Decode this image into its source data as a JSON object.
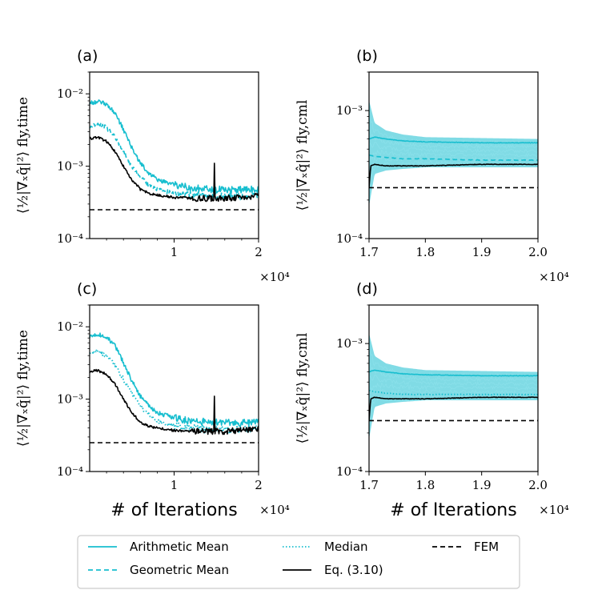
{
  "colors": {
    "mean": "#17becf",
    "eq": "#000000",
    "fem": "#000000",
    "band": "#17becf"
  },
  "chart_data": [
    {
      "id": "a",
      "type": "line",
      "panel_label": "(a)",
      "ylabel": "⟨½|∇ₓq̂|²⟩ fly,time",
      "xlabel": "",
      "xlim": [
        0,
        20000
      ],
      "ylim": [
        0.0001,
        0.02
      ],
      "yscale": "log",
      "x_ticks": [
        "1",
        "2"
      ],
      "y_ticks": [
        "10⁻⁴",
        "10⁻³",
        "10⁻²"
      ],
      "x_multiplier": "×10⁴",
      "series": [
        {
          "name": "Arithmetic Mean",
          "style": "solid",
          "x": [
            0,
            1000,
            2000,
            3000,
            4000,
            5000,
            6000,
            7000,
            8000,
            10000,
            12000,
            14000,
            16000,
            18000,
            20000
          ],
          "values": [
            0.0075,
            0.0078,
            0.0072,
            0.0055,
            0.0032,
            0.0018,
            0.0011,
            0.0008,
            0.00065,
            0.00055,
            0.0005,
            0.00048,
            0.00047,
            0.00047,
            0.00048
          ]
        },
        {
          "name": "Geometric Mean",
          "style": "dashed",
          "x": [
            0,
            1000,
            2000,
            3000,
            4000,
            5000,
            6000,
            7000,
            8000,
            10000,
            12000,
            14000,
            16000,
            18000,
            20000
          ],
          "values": [
            0.0036,
            0.0038,
            0.0034,
            0.0025,
            0.0016,
            0.001,
            0.0007,
            0.00055,
            0.00048,
            0.00042,
            0.0004,
            0.00038,
            0.00038,
            0.00038,
            0.0004
          ]
        },
        {
          "name": "Eq. (3.10)",
          "style": "solid-black",
          "x": [
            0,
            1000,
            2000,
            3000,
            4000,
            5000,
            6000,
            7000,
            8000,
            10000,
            12000,
            14000,
            16000,
            18000,
            20000
          ],
          "values": [
            0.0024,
            0.0025,
            0.0022,
            0.0016,
            0.001,
            0.00065,
            0.00048,
            0.00042,
            0.0004,
            0.00037,
            0.00036,
            0.00036,
            0.00036,
            0.00037,
            0.00039
          ]
        },
        {
          "name": "FEM",
          "style": "fem",
          "x": [
            0,
            20000
          ],
          "values": [
            0.00025,
            0.00025
          ]
        }
      ]
    },
    {
      "id": "b",
      "type": "line",
      "panel_label": "(b)",
      "ylabel": "⟨½|∇ₓq̂|²⟩ fly,cml",
      "xlabel": "",
      "xlim": [
        17000,
        20000
      ],
      "ylim": [
        0.0001,
        0.002
      ],
      "yscale": "log",
      "x_ticks": [
        "1.7",
        "1.8",
        "1.9",
        "2.0"
      ],
      "y_ticks": [
        "10⁻⁴",
        "10⁻³"
      ],
      "x_multiplier": "×10⁴",
      "series": [
        {
          "name": "Band",
          "style": "band",
          "x": [
            17000,
            17100,
            17300,
            17600,
            18000,
            20000
          ],
          "low": [
            0.00018,
            0.00032,
            0.00034,
            0.00035,
            0.00036,
            0.00036
          ],
          "high": [
            0.0012,
            0.0008,
            0.0007,
            0.00065,
            0.00062,
            0.0006
          ]
        },
        {
          "name": "Arithmetic Mean",
          "style": "solid",
          "x": [
            17000,
            17100,
            17300,
            17600,
            18000,
            19000,
            20000
          ],
          "values": [
            0.0006,
            0.00062,
            0.0006,
            0.00058,
            0.00057,
            0.00056,
            0.00056
          ]
        },
        {
          "name": "Geometric Mean",
          "style": "dashed",
          "x": [
            17000,
            17100,
            17300,
            17600,
            18000,
            19000,
            20000
          ],
          "values": [
            0.00045,
            0.00044,
            0.00043,
            0.00042,
            0.00042,
            0.00041,
            0.00041
          ]
        },
        {
          "name": "Eq. (3.10)",
          "style": "solid-black",
          "x": [
            17000,
            17030,
            17100,
            17300,
            17600,
            18000,
            19000,
            20000
          ],
          "values": [
            0.00025,
            0.00037,
            0.00038,
            0.00037,
            0.00037,
            0.00037,
            0.00038,
            0.00038
          ]
        },
        {
          "name": "FEM",
          "style": "fem",
          "x": [
            17000,
            20000
          ],
          "values": [
            0.00025,
            0.00025
          ]
        }
      ]
    },
    {
      "id": "c",
      "type": "line",
      "panel_label": "(c)",
      "ylabel": "⟨½|∇ₓq̂|²⟩ fly,time",
      "xlabel": "# of Iterations",
      "xlim": [
        0,
        20000
      ],
      "ylim": [
        0.0001,
        0.02
      ],
      "yscale": "log",
      "x_ticks": [
        "1",
        "2"
      ],
      "y_ticks": [
        "10⁻⁴",
        "10⁻³",
        "10⁻²"
      ],
      "x_multiplier": "×10⁴",
      "series": [
        {
          "name": "Arithmetic Mean",
          "style": "solid",
          "x": [
            0,
            1000,
            2000,
            3000,
            4000,
            5000,
            6000,
            7000,
            8000,
            10000,
            12000,
            14000,
            16000,
            18000,
            20000
          ],
          "values": [
            0.0075,
            0.0078,
            0.0072,
            0.0055,
            0.0032,
            0.0018,
            0.0011,
            0.0008,
            0.00065,
            0.00055,
            0.0005,
            0.00048,
            0.00047,
            0.00047,
            0.00048
          ]
        },
        {
          "name": "Median",
          "style": "dotted",
          "x": [
            0,
            1000,
            2000,
            3000,
            4000,
            5000,
            6000,
            7000,
            8000,
            10000,
            12000,
            14000,
            16000,
            18000,
            20000
          ],
          "values": [
            0.0045,
            0.0046,
            0.004,
            0.003,
            0.0019,
            0.0012,
            0.0008,
            0.0006,
            0.0005,
            0.00043,
            0.0004,
            0.00038,
            0.00037,
            0.00038,
            0.0004
          ]
        },
        {
          "name": "Eq. (3.10)",
          "style": "solid-black",
          "x": [
            0,
            1000,
            2000,
            3000,
            4000,
            5000,
            6000,
            7000,
            8000,
            10000,
            12000,
            14000,
            16000,
            18000,
            20000
          ],
          "values": [
            0.0024,
            0.0025,
            0.0022,
            0.0016,
            0.001,
            0.00065,
            0.00048,
            0.00042,
            0.0004,
            0.00037,
            0.00036,
            0.00036,
            0.00036,
            0.00037,
            0.00039
          ]
        },
        {
          "name": "FEM",
          "style": "fem",
          "x": [
            0,
            20000
          ],
          "values": [
            0.00025,
            0.00025
          ]
        }
      ]
    },
    {
      "id": "d",
      "type": "line",
      "panel_label": "(d)",
      "ylabel": "⟨½|∇ₓq̂|²⟩ fly,cml",
      "xlabel": "# of Iterations",
      "xlim": [
        17000,
        20000
      ],
      "ylim": [
        0.0001,
        0.002
      ],
      "yscale": "log",
      "x_ticks": [
        "1.7",
        "1.8",
        "1.9",
        "2.0"
      ],
      "y_ticks": [
        "10⁻⁴",
        "10⁻³"
      ],
      "x_multiplier": "×10⁴",
      "series": [
        {
          "name": "Band",
          "style": "band",
          "x": [
            17000,
            17100,
            17300,
            17600,
            18000,
            20000
          ],
          "low": [
            0.00018,
            0.00032,
            0.00034,
            0.00035,
            0.00036,
            0.00036
          ],
          "high": [
            0.0012,
            0.0008,
            0.0007,
            0.00065,
            0.00062,
            0.0006
          ]
        },
        {
          "name": "Arithmetic Mean",
          "style": "solid",
          "x": [
            17000,
            17100,
            17300,
            17600,
            18000,
            19000,
            20000
          ],
          "values": [
            0.0006,
            0.00062,
            0.0006,
            0.00058,
            0.00057,
            0.00056,
            0.00056
          ]
        },
        {
          "name": "Median",
          "style": "dotted",
          "x": [
            17000,
            17100,
            17300,
            17600,
            18000,
            19000,
            20000
          ],
          "values": [
            0.00043,
            0.00042,
            0.00041,
            0.0004,
            0.0004,
            0.0004,
            0.0004
          ]
        },
        {
          "name": "Eq. (3.10)",
          "style": "solid-black",
          "x": [
            17000,
            17030,
            17100,
            17300,
            17600,
            18000,
            19000,
            20000
          ],
          "values": [
            0.00025,
            0.00037,
            0.00038,
            0.00037,
            0.00037,
            0.00037,
            0.00038,
            0.00038
          ]
        },
        {
          "name": "FEM",
          "style": "fem",
          "x": [
            17000,
            20000
          ],
          "values": [
            0.00025,
            0.00025
          ]
        }
      ]
    }
  ],
  "legend": {
    "placement": "bottom",
    "entries": [
      {
        "label": "Arithmetic Mean",
        "style": "solid"
      },
      {
        "label": "Median",
        "style": "dotted"
      },
      {
        "label": "FEM",
        "style": "fem"
      },
      {
        "label": "Geometric Mean",
        "style": "dashed"
      },
      {
        "label": "Eq. (3.10)",
        "style": "solid-black"
      }
    ]
  }
}
